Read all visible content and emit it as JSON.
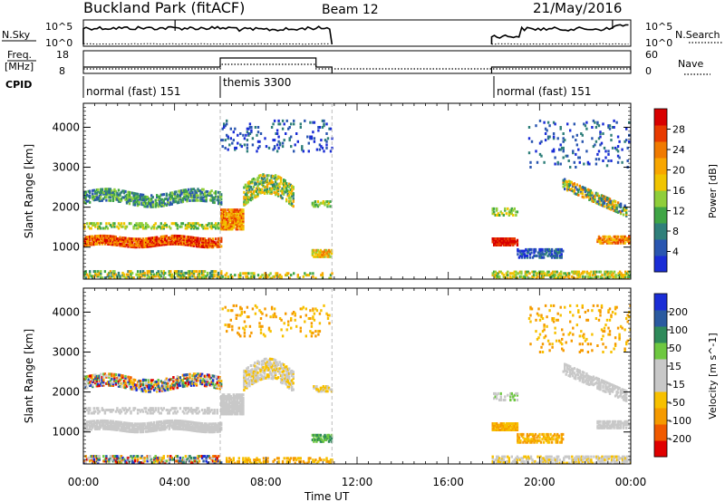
{
  "header": {
    "station": "Buckland Park (fitACF)",
    "beam": "Beam 12",
    "date": "21/May/2016"
  },
  "noise_panel": {
    "left_label": "N.Sky",
    "right_label": "N.Search",
    "left_ticks": [
      "10^5",
      "10^0"
    ],
    "right_ticks": [
      "10^5",
      "10^0"
    ]
  },
  "freq_panel": {
    "left_label_1": "Freq.",
    "left_label_2": "[MHz]",
    "left_ticks": [
      "18",
      "8"
    ],
    "right_label": "Nave",
    "right_ticks": [
      "60",
      "0"
    ]
  },
  "cpid": {
    "label": "CPID",
    "segments": [
      {
        "text": "normal (fast) 151",
        "start_hour": 0
      },
      {
        "text": "themis 3300",
        "start_hour": 6
      },
      {
        "text": "normal (fast) 151",
        "start_hour": 18
      }
    ]
  },
  "x_axis": {
    "label": "Time UT",
    "ticks": [
      "00:00",
      "04:00",
      "08:00",
      "12:00",
      "16:00",
      "20:00",
      "00:00"
    ]
  },
  "colors": {
    "power": [
      "#1a2dd6",
      "#2a56b0",
      "#2f7f7a",
      "#3fa545",
      "#8fce3a",
      "#f0c400",
      "#f8a600",
      "#f07a00",
      "#e83a00",
      "#d80000"
    ],
    "velocity": [
      "#e00000",
      "#f05a00",
      "#f59a00",
      "#f7c000",
      "#c8c8c8",
      "#c8c8c8",
      "#6ec840",
      "#2e8a5a",
      "#2a5aa0",
      "#1a2dd6"
    ]
  },
  "chart_data": [
    {
      "type": "heatmap",
      "name_hint": "power",
      "ylabel": "Slant Range [km]",
      "yticks": [
        "1000",
        "2000",
        "3000",
        "4000"
      ],
      "ylim": [
        200,
        4600
      ],
      "xlim_hours": [
        0,
        24
      ],
      "colorbar_label": "Power [dB]",
      "colorbar_ticks": [
        "4",
        "8",
        "12",
        "16",
        "20",
        "24",
        "28"
      ]
    },
    {
      "type": "heatmap",
      "name_hint": "velocity",
      "ylabel": "Slant Range [km]",
      "yticks": [
        "1000",
        "2000",
        "3000",
        "4000"
      ],
      "ylim": [
        200,
        4600
      ],
      "xlim_hours": [
        0,
        24
      ],
      "colorbar_label": "Velocity [m s^-1]",
      "colorbar_ticks": [
        "200",
        "100",
        "50",
        "15",
        "-15",
        "-50",
        "-100",
        "-200"
      ]
    }
  ]
}
